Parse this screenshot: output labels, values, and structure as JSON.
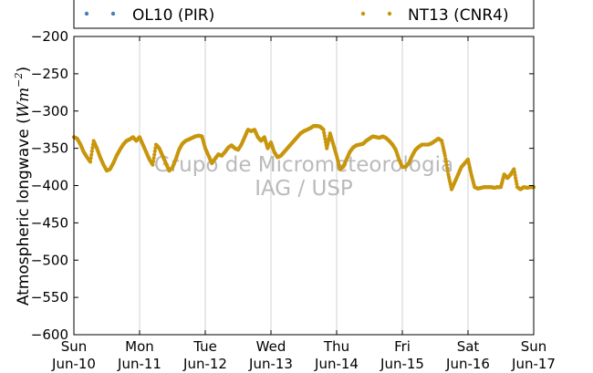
{
  "chart_data": {
    "type": "scatter",
    "ylabel_text": "Atmospheric longwave (",
    "ylabel_math": "Wm",
    "ylabel_exp": "−2",
    "ylabel_close": ")",
    "ylim": [
      -600,
      -200
    ],
    "yticks": [
      -200,
      -250,
      -300,
      -350,
      -400,
      -450,
      -500,
      -550,
      -600
    ],
    "ytick_labels": [
      "−200",
      "−250",
      "−300",
      "−350",
      "−400",
      "−450",
      "−500",
      "−550",
      "−600"
    ],
    "xlim": [
      0,
      7
    ],
    "xticks": [
      0,
      1,
      2,
      3,
      4,
      5,
      6,
      7
    ],
    "xtick_days": [
      "Sun",
      "Mon",
      "Tue",
      "Wed",
      "Thu",
      "Fri",
      "Sat",
      "Sun"
    ],
    "xtick_dates": [
      "Jun-10",
      "Jun-11",
      "Jun-12",
      "Jun-13",
      "Jun-14",
      "Jun-15",
      "Jun-16",
      "Jun-17"
    ],
    "grid": "vertical",
    "legend_position": "top",
    "watermark": [
      "Grupo de Micrometeorologia",
      "IAG / USP"
    ],
    "series": [
      {
        "name": "OL10 (PIR)",
        "color": "#4682b4",
        "x": [],
        "y": []
      },
      {
        "name": "NT13 (CNR4)",
        "color": "#c8960c",
        "x": [
          0.0,
          0.05,
          0.1,
          0.15,
          0.2,
          0.25,
          0.3,
          0.35,
          0.4,
          0.45,
          0.5,
          0.55,
          0.6,
          0.65,
          0.7,
          0.75,
          0.8,
          0.85,
          0.9,
          0.95,
          1.0,
          1.05,
          1.1,
          1.15,
          1.2,
          1.25,
          1.3,
          1.35,
          1.4,
          1.45,
          1.5,
          1.55,
          1.6,
          1.65,
          1.7,
          1.75,
          1.8,
          1.85,
          1.9,
          1.95,
          2.0,
          2.05,
          2.1,
          2.15,
          2.2,
          2.25,
          2.3,
          2.35,
          2.4,
          2.45,
          2.5,
          2.55,
          2.6,
          2.65,
          2.7,
          2.75,
          2.8,
          2.85,
          2.9,
          2.95,
          3.0,
          3.05,
          3.1,
          3.15,
          3.2,
          3.25,
          3.3,
          3.35,
          3.4,
          3.45,
          3.5,
          3.55,
          3.6,
          3.65,
          3.7,
          3.75,
          3.8,
          3.85,
          3.9,
          3.95,
          4.0,
          4.05,
          4.1,
          4.15,
          4.2,
          4.25,
          4.3,
          4.35,
          4.4,
          4.45,
          4.5,
          4.55,
          4.6,
          4.65,
          4.7,
          4.75,
          4.8,
          4.85,
          4.9,
          4.95,
          5.0,
          5.05,
          5.1,
          5.15,
          5.2,
          5.25,
          5.3,
          5.35,
          5.4,
          5.45,
          5.5,
          5.55,
          5.6,
          5.65,
          5.7,
          5.75,
          5.8,
          5.85,
          5.9,
          5.95,
          6.0,
          6.05,
          6.1,
          6.15,
          6.2,
          6.25,
          6.3,
          6.35,
          6.4,
          6.45,
          6.5,
          6.55,
          6.6,
          6.65,
          6.7,
          6.75,
          6.8,
          6.85,
          6.9,
          6.95,
          7.0
        ],
        "y": [
          -335,
          -337,
          -345,
          -355,
          -362,
          -368,
          -340,
          -350,
          -362,
          -372,
          -380,
          -378,
          -370,
          -360,
          -352,
          -345,
          -340,
          -338,
          -335,
          -340,
          -335,
          -345,
          -355,
          -365,
          -372,
          -345,
          -350,
          -360,
          -370,
          -380,
          -376,
          -365,
          -352,
          -344,
          -340,
          -338,
          -336,
          -334,
          -333,
          -334,
          -350,
          -360,
          -370,
          -364,
          -358,
          -360,
          -355,
          -349,
          -346,
          -350,
          -352,
          -345,
          -335,
          -325,
          -327,
          -325,
          -335,
          -340,
          -335,
          -350,
          -342,
          -355,
          -362,
          -360,
          -355,
          -350,
          -345,
          -340,
          -335,
          -330,
          -327,
          -325,
          -323,
          -320,
          -320,
          -321,
          -325,
          -350,
          -330,
          -345,
          -360,
          -378,
          -375,
          -365,
          -355,
          -349,
          -346,
          -345,
          -344,
          -340,
          -337,
          -334,
          -335,
          -336,
          -334,
          -336,
          -340,
          -345,
          -352,
          -365,
          -375,
          -375,
          -370,
          -360,
          -352,
          -348,
          -345,
          -345,
          -345,
          -343,
          -340,
          -337,
          -340,
          -360,
          -385,
          -405,
          -395,
          -385,
          -375,
          -370,
          -365,
          -385,
          -402,
          -404,
          -403,
          -402,
          -402,
          -402,
          -403,
          -402,
          -402,
          -385,
          -390,
          -385,
          -378,
          -402,
          -405,
          -402,
          -403,
          -402,
          -402
        ]
      }
    ]
  }
}
